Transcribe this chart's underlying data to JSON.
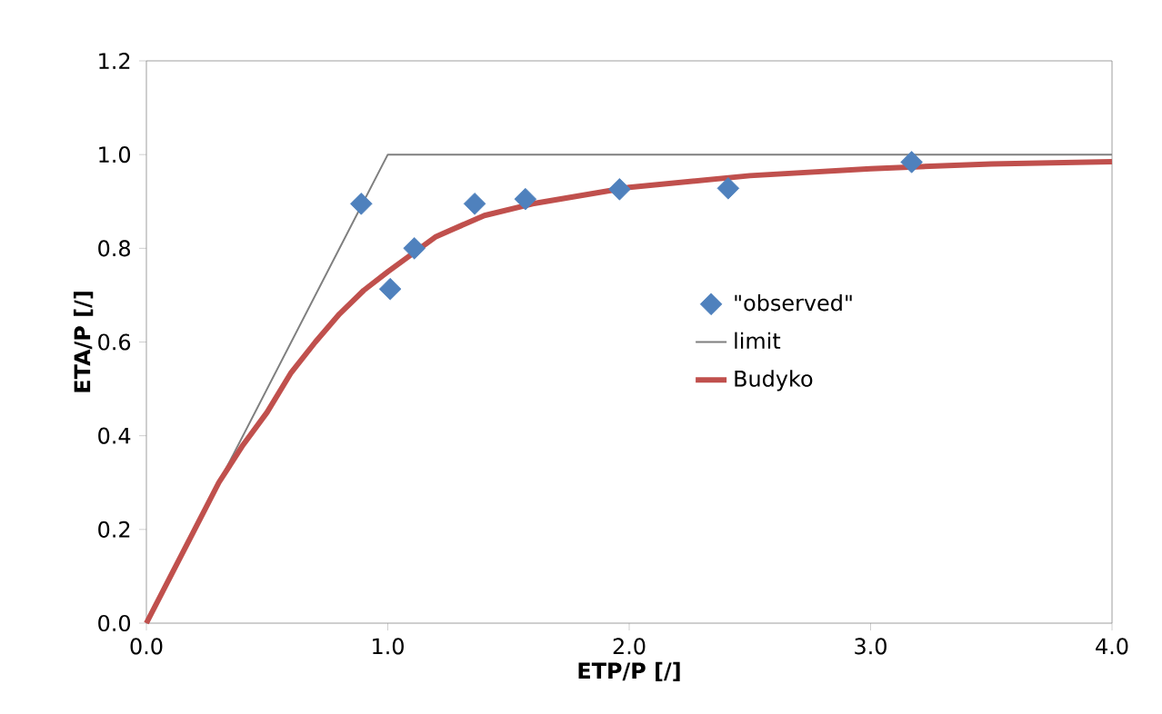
{
  "chart_data": {
    "type": "scatter",
    "xlabel": "ETP/P [/]",
    "ylabel": "ETA/P [/]",
    "xlim": [
      0,
      4
    ],
    "ylim": [
      0,
      1.2
    ],
    "xticks": [
      {
        "value": 0,
        "label": "0.0"
      },
      {
        "value": 1,
        "label": "1.0"
      },
      {
        "value": 2,
        "label": "2.0"
      },
      {
        "value": 3,
        "label": "3.0"
      },
      {
        "value": 4,
        "label": "4.0"
      }
    ],
    "yticks": [
      {
        "value": 0,
        "label": "0.0"
      },
      {
        "value": 0.2,
        "label": "0.2"
      },
      {
        "value": 0.4,
        "label": "0.4"
      },
      {
        "value": 0.6,
        "label": "0.6"
      },
      {
        "value": 0.8,
        "label": "0.8"
      },
      {
        "value": 1,
        "label": "1.0"
      },
      {
        "value": 1.2,
        "label": "1.2"
      }
    ],
    "legend": "center",
    "grid": false,
    "series": [
      {
        "name": "\"observed\"",
        "marker": "diamond",
        "color": "#4f81bd",
        "x": [
          0.89,
          1.01,
          1.11,
          1.36,
          1.57,
          1.96,
          2.41,
          3.17
        ],
        "values": [
          0.895,
          0.713,
          0.8,
          0.895,
          0.905,
          0.926,
          0.928,
          0.984
        ]
      },
      {
        "name": "limit",
        "type": "line",
        "marker": "none",
        "color": "#7f7f7f",
        "x": [
          0,
          1,
          4
        ],
        "values": [
          0,
          1,
          1
        ]
      },
      {
        "name": "Budyko",
        "type": "line",
        "marker": "none",
        "color": "#c0504d",
        "x": [
          0,
          0.1,
          0.2,
          0.3,
          0.4,
          0.5,
          0.6,
          0.7,
          0.8,
          0.9,
          1.0,
          1.2,
          1.4,
          1.6,
          2.0,
          2.5,
          3.0,
          3.5,
          4.0
        ],
        "values": [
          0,
          0.1,
          0.2,
          0.3,
          0.38,
          0.45,
          0.535,
          0.6,
          0.66,
          0.71,
          0.75,
          0.825,
          0.87,
          0.895,
          0.93,
          0.955,
          0.97,
          0.98,
          0.985
        ]
      }
    ]
  }
}
